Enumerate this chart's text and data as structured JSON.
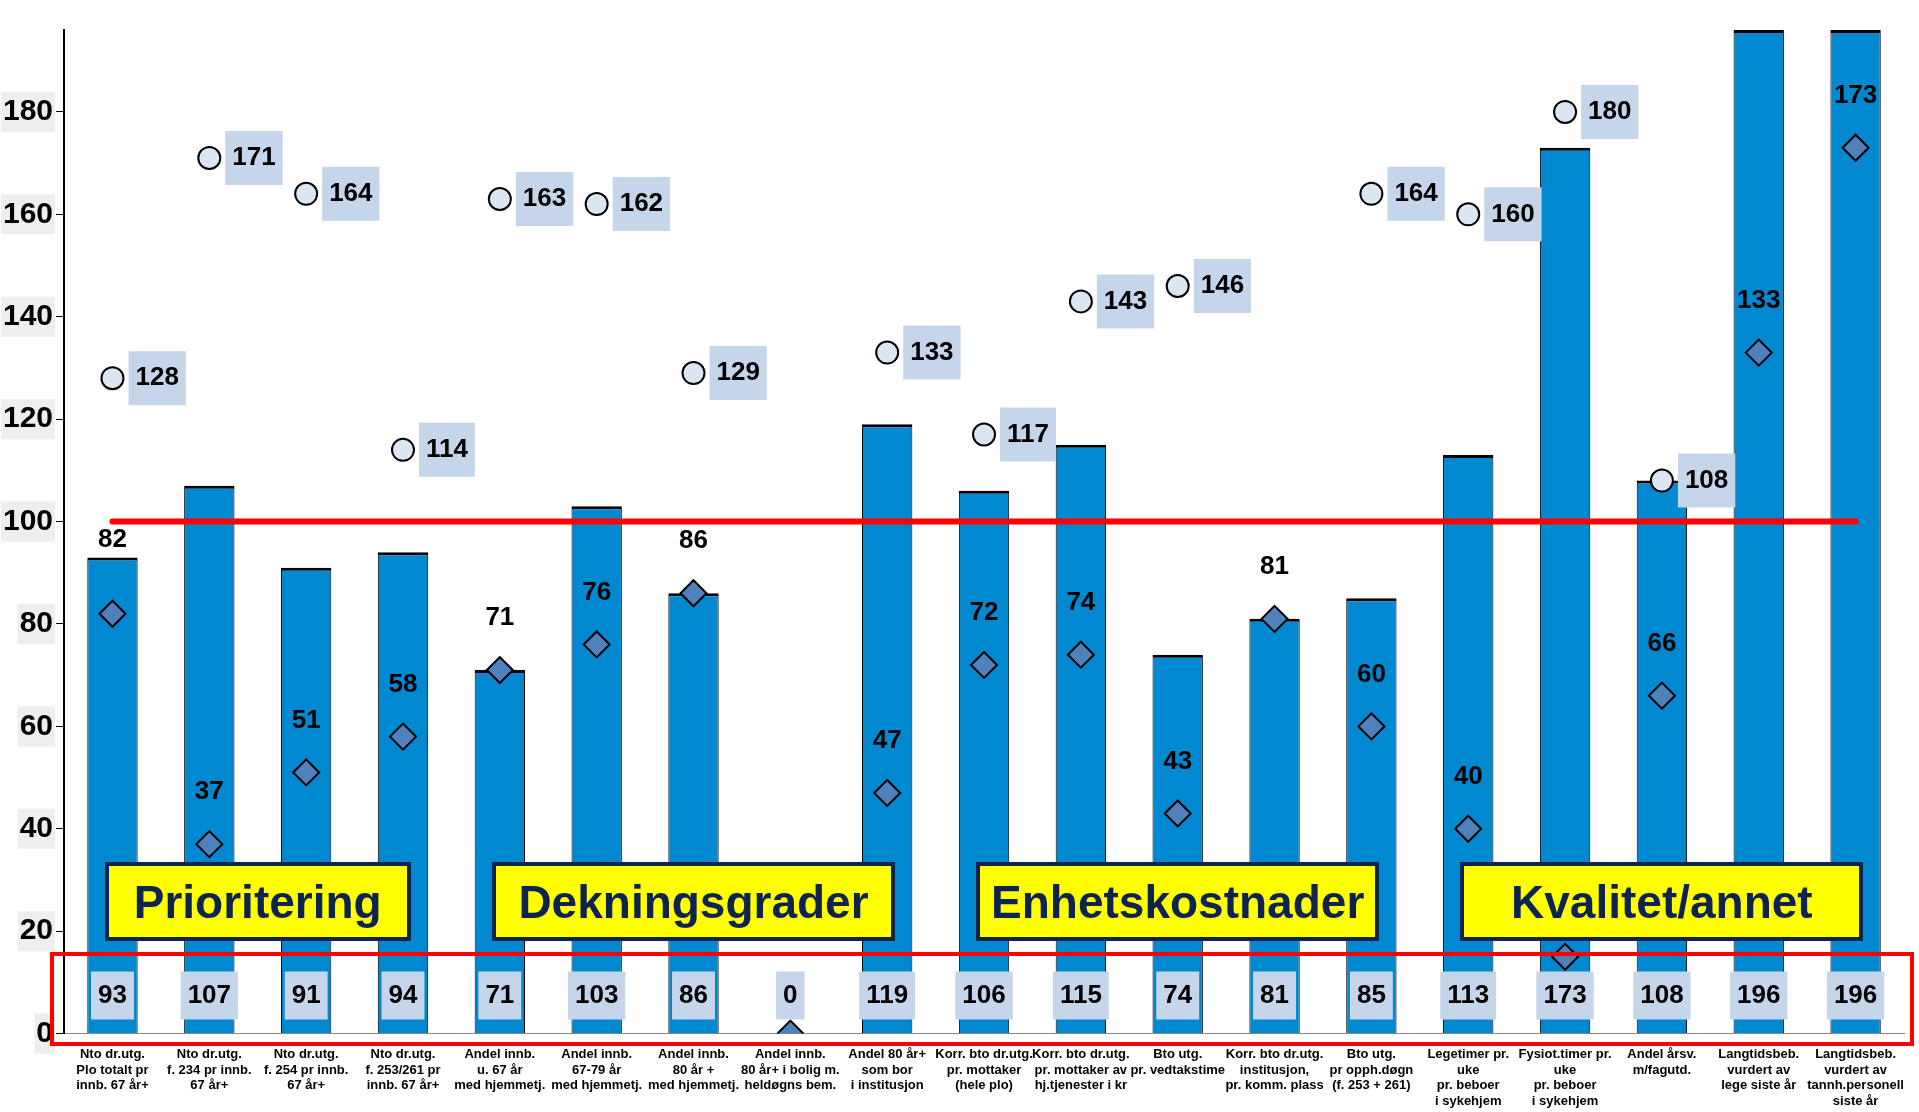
{
  "chart_data": {
    "type": "bar",
    "categories": [
      "Nto dr.utg.\nPlo totalt pr\ninnb. 67 år+",
      "Nto dr.utg.\nf. 234 pr innb.\n67 år+",
      "Nto dr.utg.\nf. 254 pr innb.\n67 år+",
      "Nto dr.utg.\nf. 253/261 pr\ninnb. 67 år+",
      "Andel innb.\nu. 67 år\nmed hjemmetj.",
      "Andel innb.\n67-79 år\nmed hjemmetj.",
      "Andel innb.\n80 år +\nmed hjemmetj.",
      "Andel innb.\n80 år+ i bolig m.\nheldøgns bem.",
      "Andel 80 år+\nsom bor\ni institusjon",
      "Korr. bto dr.utg.\npr. mottaker\n(hele plo)",
      "Korr. bto dr.utg.\npr. mottaker av\nhj.tjenester i kr",
      "Bto utg.\npr. vedtakstime",
      "Korr. bto dr.utg.\ninstitusjon,\npr. komm. plass",
      "Bto utg.\npr opph.døgn\n(f. 253 + 261)",
      "Legetimer pr.\nuke\npr. beboer\ni sykehjem",
      "Fysiot.timer pr.\nuke\npr. beboer\ni sykehjem",
      "Andel årsv.\nm/fagutd.",
      "Langtidsbeb.\nvurdert av\nlege siste år",
      "Langtidsbeb.\nvurdert av\ntannh.personell\nsiste år"
    ],
    "series": [
      {
        "color": "#0088d1",
        "values": [
          93,
          107,
          91,
          94,
          71,
          103,
          86,
          0,
          119,
          106,
          115,
          74,
          81,
          85,
          113,
          173,
          108,
          196,
          196
        ],
        "value_labels": [
          "93",
          "107",
          "91",
          "94",
          "71",
          "103",
          "86",
          "0",
          "119",
          "106",
          "115",
          "74",
          "81",
          "85",
          "113",
          "173",
          "108",
          "196",
          "196"
        ]
      },
      {
        "type": "scatter",
        "marker": "diamond",
        "color": "#4f81bd",
        "values": [
          82,
          37,
          51,
          58,
          71,
          76,
          86,
          0,
          47,
          72,
          74,
          43,
          81,
          60,
          40,
          15,
          66,
          133,
          173
        ],
        "value_labels": [
          "82",
          "37",
          "51",
          "58",
          "71",
          "76",
          "86",
          null,
          "47",
          "72",
          "74",
          "43",
          "81",
          "60",
          "40",
          null,
          "66",
          "133",
          "173"
        ]
      },
      {
        "type": "scatter",
        "marker": "circle",
        "color": "#dce6f2",
        "values": [
          128,
          171,
          164,
          114,
          163,
          162,
          129,
          null,
          133,
          117,
          143,
          146,
          null,
          164,
          160,
          180,
          108,
          null,
          null
        ],
        "value_labels": [
          "128",
          "171",
          "164",
          "114",
          "163",
          "162",
          "129",
          null,
          "133",
          "117",
          "143",
          "146",
          null,
          "164",
          "160",
          "180",
          "108",
          null,
          null
        ]
      }
    ],
    "ylim": [
      0,
      196
    ],
    "yticks": [
      0,
      20,
      40,
      60,
      80,
      100,
      120,
      140,
      160,
      180
    ],
    "ref_lines": [
      {
        "axis": "y",
        "value": 100,
        "color": "#ff0000"
      }
    ],
    "annotations": [
      "Prioritering",
      "Dekningsgrader",
      "Enhetskostnader",
      "Kvalitet/annet"
    ],
    "grid": false,
    "legend": false
  }
}
